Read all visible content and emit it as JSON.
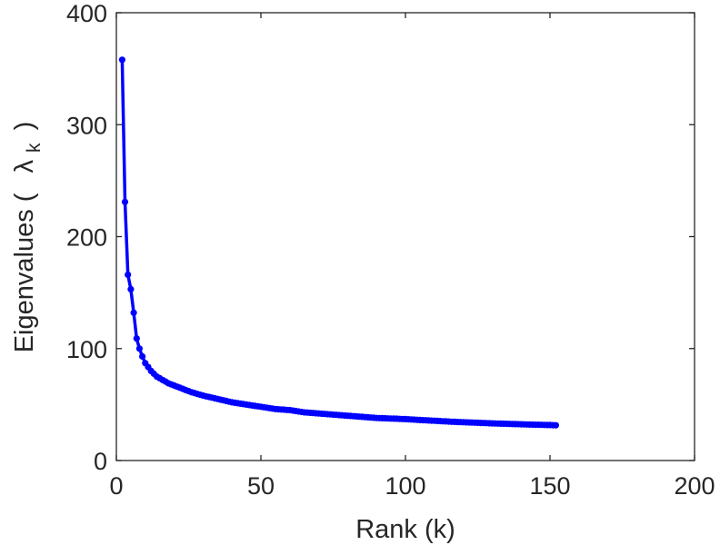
{
  "chart_data": {
    "type": "line",
    "xlabel": "Rank (k)",
    "ylabel_text": "Eigenvalues (",
    "ylabel_symbol": "λ",
    "ylabel_subscript": "k",
    "ylabel_close": ")",
    "xlim": [
      0,
      200
    ],
    "ylim": [
      0,
      400
    ],
    "xticks": [
      0,
      50,
      100,
      150,
      200
    ],
    "yticks": [
      0,
      100,
      200,
      300,
      400
    ],
    "xtick_labels": [
      "0",
      "50",
      "100",
      "150",
      "200"
    ],
    "ytick_labels": [
      "0",
      "100",
      "200",
      "300",
      "400"
    ],
    "grid": false,
    "series_color": "#0000ff",
    "series": [
      {
        "x": [
          2,
          3,
          4,
          5,
          6,
          7,
          8,
          9,
          10,
          12,
          14,
          16,
          18,
          20,
          23,
          26,
          30,
          35,
          40,
          45,
          50,
          55,
          60,
          65,
          70,
          75,
          80,
          85,
          90,
          95,
          100,
          105,
          110,
          115,
          120,
          125,
          130,
          135,
          140,
          145,
          150,
          152
        ],
        "values": [
          358,
          231,
          166,
          153,
          132,
          109,
          100,
          93,
          87,
          80,
          75,
          72,
          69,
          67,
          64,
          61,
          58,
          55,
          52,
          50,
          48,
          46,
          45,
          43,
          42,
          41,
          40,
          39,
          38,
          37.5,
          37,
          36.2,
          35.5,
          34.8,
          34.2,
          33.7,
          33.2,
          32.8,
          32.4,
          32,
          31.7,
          31.5
        ]
      }
    ]
  }
}
